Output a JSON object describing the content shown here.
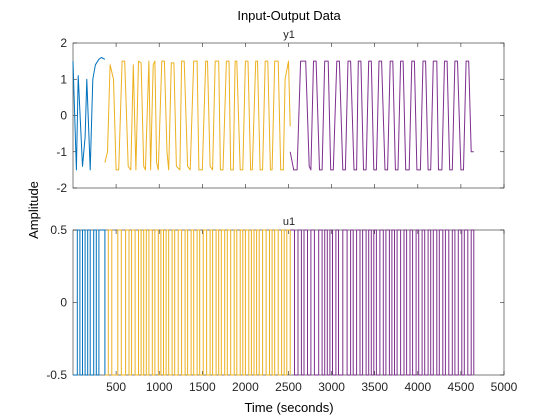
{
  "chart_data": {
    "type": "line",
    "title": "Input-Output Data",
    "xlabel": "Time (seconds)",
    "ylabel": "Amplitude",
    "grid": false,
    "legend": "none",
    "x_ticks": [
      500,
      1000,
      1500,
      2000,
      2500,
      3000,
      3500,
      4000,
      4500,
      5000
    ],
    "xlim": [
      0,
      5000
    ],
    "series_colors": [
      "#0072BD",
      "#EDB120",
      "#7E2F8E"
    ],
    "panels": [
      {
        "name": "y1",
        "ylim": [
          -2,
          2
        ],
        "y_ticks": [
          2,
          1,
          0,
          -1,
          -2
        ],
        "segments": [
          {
            "color": "#0072BD",
            "x": [
              0,
              40,
              60,
              110,
              140,
              160,
              200,
              230,
              260,
              300,
              330,
              370
            ],
            "y": [
              1.5,
              -1.5,
              1.1,
              -1.4,
              -0.6,
              1.0,
              -1.5,
              1.0,
              1.4,
              1.55,
              1.6,
              1.55
            ]
          },
          {
            "color": "#EDB120",
            "x": [
              370,
              400,
              430,
              470,
              500,
              530,
              570,
              600,
              640,
              670,
              700,
              730,
              760,
              790,
              820,
              840,
              880,
              900,
              930,
              950,
              970,
              990,
              1030,
              1060,
              1090,
              1110,
              1140,
              1170,
              1200,
              1240,
              1260,
              1290,
              1330,
              1360,
              1400,
              1440,
              1460,
              1500,
              1540,
              1560,
              1590,
              1620,
              1650,
              1690,
              1710,
              1740,
              1780,
              1810,
              1830,
              1860,
              1880,
              1900,
              1940,
              1970,
              2000,
              2030,
              2060,
              2080,
              2120,
              2140,
              2170,
              2200,
              2230,
              2260,
              2290,
              2310,
              2340,
              2380,
              2410,
              2440,
              2460,
              2500,
              2520
            ],
            "y": [
              -1.3,
              -1.0,
              1.4,
              1.0,
              -1.5,
              -1.5,
              1.5,
              1.5,
              -1.4,
              -1.5,
              1.4,
              -1.5,
              1.5,
              1.45,
              -1.4,
              -1.5,
              1.5,
              -1.5,
              1.4,
              1.5,
              -1.3,
              -1.5,
              1.5,
              1.5,
              -1.0,
              -1.5,
              1.45,
              1.45,
              -1.4,
              -1.5,
              1.5,
              1.5,
              -1.4,
              -1.5,
              1.5,
              1.5,
              -1.5,
              -1.5,
              1.5,
              1.5,
              -1.4,
              -1.5,
              1.5,
              1.5,
              -1.5,
              -1.5,
              1.5,
              1.5,
              -1.5,
              -1.5,
              1.5,
              1.5,
              -1.5,
              -1.5,
              1.5,
              1.5,
              -1.5,
              -1.5,
              1.5,
              1.5,
              -1.5,
              -1.5,
              1.5,
              1.5,
              -1.5,
              -1.5,
              1.5,
              1.5,
              -1.5,
              -1.5,
              1.0,
              1.5,
              -0.3
            ]
          },
          {
            "color": "#7E2F8E",
            "x": [
              2520,
              2560,
              2600,
              2640,
              2660,
              2700,
              2740,
              2760,
              2790,
              2820,
              2860,
              2890,
              2920,
              2960,
              2990,
              3020,
              3060,
              3090,
              3130,
              3160,
              3190,
              3220,
              3260,
              3290,
              3310,
              3340,
              3370,
              3400,
              3430,
              3460,
              3490,
              3520,
              3550,
              3580,
              3620,
              3650,
              3680,
              3710,
              3740,
              3770,
              3800,
              3830,
              3860,
              3900,
              3930,
              3960,
              3990,
              4030,
              4060,
              4090,
              4120,
              4150,
              4180,
              4220,
              4240,
              4280,
              4310,
              4340,
              4370,
              4400,
              4430,
              4460,
              4500,
              4530,
              4560,
              4590,
              4620,
              4650
            ],
            "y": [
              -1.0,
              -1.5,
              -1.5,
              1.5,
              1.5,
              1.5,
              -1.4,
              -1.5,
              1.5,
              1.5,
              -1.5,
              -1.5,
              1.5,
              1.5,
              -1.5,
              -1.5,
              1.5,
              1.5,
              -1.5,
              -1.5,
              1.5,
              1.5,
              -1.5,
              -1.5,
              1.5,
              1.5,
              -1.5,
              -1.5,
              1.5,
              1.5,
              -1.5,
              -1.5,
              1.5,
              1.5,
              -1.5,
              -1.5,
              1.5,
              1.5,
              -1.5,
              -1.5,
              1.5,
              1.5,
              -1.5,
              -1.5,
              1.5,
              1.5,
              -1.5,
              -1.5,
              1.5,
              1.5,
              -1.5,
              -1.5,
              1.5,
              1.5,
              -1.5,
              -1.5,
              1.5,
              1.5,
              -1.5,
              -1.5,
              1.5,
              1.5,
              -1.5,
              -1.5,
              1.5,
              1.5,
              -1.0,
              -1.0
            ]
          }
        ]
      },
      {
        "name": "u1",
        "ylim": [
          -0.5,
          0.5
        ],
        "y_ticks": [
          0.5,
          0,
          -0.5
        ],
        "segments": [
          {
            "color": "#0072BD",
            "x": [
              0,
              50,
              80,
              110,
              140,
              170,
              200,
              240,
              270,
              300,
              370
            ],
            "y": [
              -0.5,
              0.5,
              -0.5,
              0.5,
              -0.5,
              0.5,
              -0.5,
              0.5,
              -0.5,
              0.5,
              -0.5
            ]
          },
          {
            "color": "#EDB120",
            "x": [
              370,
              410,
              450,
              520,
              560,
              610,
              650,
              680,
              720,
              760,
              790,
              820,
              850,
              880,
              920,
              950,
              990,
              1020,
              1050,
              1080,
              1110,
              1150,
              1180,
              1220,
              1260,
              1300,
              1330,
              1370,
              1400,
              1440,
              1470,
              1510,
              1550,
              1590,
              1620,
              1660,
              1690,
              1720,
              1760,
              1790,
              1830,
              1870,
              1900,
              1940,
              1970,
              2000,
              2040,
              2070,
              2100,
              2130,
              2160,
              2200,
              2240,
              2280,
              2310,
              2340,
              2380,
              2420,
              2450,
              2480,
              2520
            ],
            "y": [
              -0.5,
              0.5,
              -0.5,
              0.5,
              -0.5,
              0.5,
              -0.5,
              0.5,
              -0.5,
              0.5,
              -0.5,
              0.5,
              -0.5,
              0.5,
              -0.5,
              0.5,
              -0.5,
              0.5,
              -0.5,
              0.5,
              -0.5,
              0.5,
              -0.5,
              0.5,
              -0.5,
              0.5,
              -0.5,
              0.5,
              -0.5,
              0.5,
              -0.5,
              0.5,
              -0.5,
              0.5,
              -0.5,
              0.5,
              -0.5,
              0.5,
              -0.5,
              0.5,
              -0.5,
              0.5,
              -0.5,
              0.5,
              -0.5,
              0.5,
              -0.5,
              0.5,
              -0.5,
              0.5,
              -0.5,
              0.5,
              -0.5,
              0.5,
              -0.5,
              0.5,
              -0.5,
              0.5,
              -0.5,
              0.5,
              -0.5
            ]
          },
          {
            "color": "#7E2F8E",
            "x": [
              2520,
              2570,
              2610,
              2650,
              2680,
              2720,
              2760,
              2800,
              2850,
              2890,
              2920,
              2950,
              2980,
              3010,
              3050,
              3080,
              3130,
              3180,
              3220,
              3250,
              3290,
              3330,
              3360,
              3400,
              3430,
              3460,
              3490,
              3520,
              3560,
              3600,
              3630,
              3670,
              3700,
              3730,
              3760,
              3800,
              3840,
              3870,
              3910,
              3940,
              3980,
              4010,
              4050,
              4080,
              4120,
              4150,
              4180,
              4220,
              4250,
              4290,
              4320,
              4360,
              4400,
              4430,
              4470,
              4510,
              4540,
              4580,
              4620,
              4650
            ],
            "y": [
              0.5,
              -0.5,
              0.5,
              -0.5,
              0.5,
              -0.5,
              0.5,
              -0.5,
              0.5,
              -0.5,
              0.5,
              -0.5,
              0.5,
              -0.5,
              0.5,
              -0.5,
              0.5,
              -0.5,
              0.5,
              -0.5,
              0.5,
              -0.5,
              0.5,
              -0.5,
              0.5,
              -0.5,
              0.5,
              -0.5,
              0.5,
              -0.5,
              0.5,
              -0.5,
              0.5,
              -0.5,
              0.5,
              -0.5,
              0.5,
              -0.5,
              0.5,
              -0.5,
              0.5,
              -0.5,
              0.5,
              -0.5,
              0.5,
              -0.5,
              0.5,
              -0.5,
              0.5,
              -0.5,
              0.5,
              -0.5,
              0.5,
              -0.5,
              0.5,
              -0.5,
              0.5,
              -0.5,
              0.5,
              -0.5
            ]
          }
        ]
      }
    ]
  }
}
